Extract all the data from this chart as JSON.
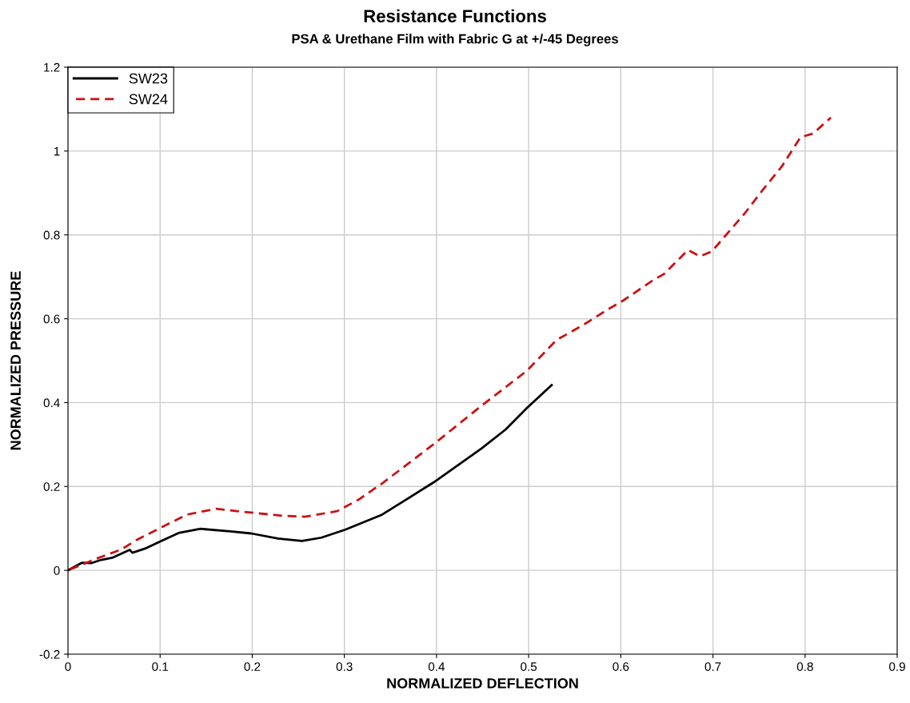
{
  "chart_data": {
    "type": "line",
    "title": "Resistance Functions",
    "subtitle": "PSA & Urethane Film with Fabric G at +/-45 Degrees",
    "xlabel": "NORMALIZED DEFLECTION",
    "ylabel": "NORMALIZED PRESSURE",
    "xlim": [
      0,
      0.9
    ],
    "xticks": [
      0,
      0.1,
      0.2,
      0.3,
      0.4,
      0.5,
      0.6,
      0.7,
      0.8,
      0.9
    ],
    "ylim": [
      -0.2,
      1.2
    ],
    "yticks": [
      -0.2,
      0,
      0.2,
      0.4,
      0.6,
      0.8,
      1,
      1.2
    ],
    "grid": true,
    "legend": "top left",
    "series": [
      {
        "name": "SW23",
        "color": "#000000",
        "line_style": "solid",
        "x": [
          0,
          0.015,
          0.025,
          0.036,
          0.048,
          0.067,
          0.07,
          0.085,
          0.103,
          0.12,
          0.144,
          0.176,
          0.199,
          0.228,
          0.254,
          0.275,
          0.301,
          0.341,
          0.397,
          0.449,
          0.475,
          0.498,
          0.525
        ],
        "values": [
          0,
          0.018,
          0.017,
          0.025,
          0.03,
          0.049,
          0.042,
          0.053,
          0.072,
          0.089,
          0.099,
          0.093,
          0.088,
          0.076,
          0.07,
          0.078,
          0.097,
          0.133,
          0.21,
          0.291,
          0.336,
          0.387,
          0.442
        ]
      },
      {
        "name": "SW24",
        "color": "#cc1111",
        "line_style": "dashed",
        "x": [
          0,
          0.031,
          0.058,
          0.074,
          0.1,
          0.129,
          0.161,
          0.176,
          0.202,
          0.234,
          0.257,
          0.292,
          0.315,
          0.342,
          0.397,
          0.449,
          0.498,
          0.53,
          0.559,
          0.588,
          0.603,
          0.635,
          0.647,
          0.673,
          0.686,
          0.699,
          0.719,
          0.734,
          0.754,
          0.775,
          0.795,
          0.809,
          0.818,
          0.828
        ],
        "values": [
          0,
          0.028,
          0.05,
          0.072,
          0.101,
          0.133,
          0.147,
          0.143,
          0.137,
          0.13,
          0.128,
          0.141,
          0.168,
          0.209,
          0.301,
          0.393,
          0.476,
          0.549,
          0.585,
          0.625,
          0.644,
          0.692,
          0.707,
          0.764,
          0.749,
          0.761,
          0.812,
          0.85,
          0.907,
          0.964,
          1.033,
          1.042,
          1.06,
          1.08
        ]
      }
    ]
  }
}
